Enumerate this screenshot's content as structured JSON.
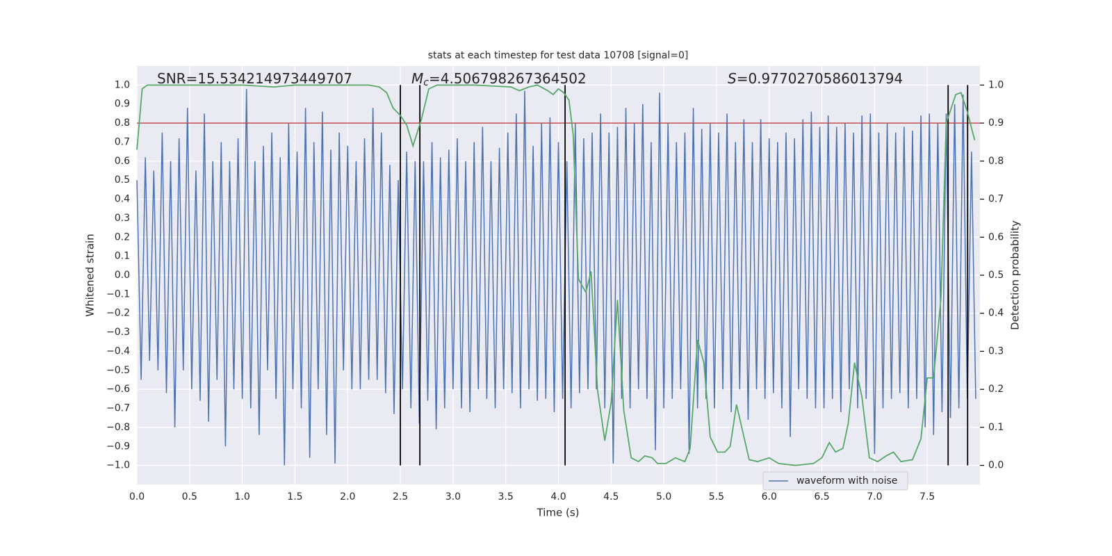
{
  "chart_data": {
    "type": "line",
    "title": "stats at each timestep for test data 10708 [signal=0]",
    "xlabel": "Time (s)",
    "ylabel": "Whitened strain",
    "y2label": "Detection probability",
    "xlim": [
      0,
      8
    ],
    "ylim": [
      -1.1,
      1.1
    ],
    "y2lim": [
      -0.05,
      1.05
    ],
    "grid": true,
    "background": "#eaeaf2",
    "legend": "lower right",
    "xticks": [
      {
        "value": 0,
        "label": "0.0"
      },
      0.5,
      {
        "value": 1,
        "label": "1.0"
      },
      1.5,
      {
        "value": 2,
        "label": "2.0"
      },
      2.5,
      {
        "value": 3,
        "label": "3.0"
      },
      3.5,
      {
        "value": 4,
        "label": "4.0"
      },
      4.5,
      {
        "value": 5,
        "label": "5.0"
      },
      5.5,
      {
        "value": 6,
        "label": "6.0"
      },
      6.5,
      {
        "value": 7,
        "label": "7.0"
      },
      7.5
    ],
    "yticks": [
      {
        "value": -1,
        "label": "−1.0"
      },
      {
        "value": -0.9,
        "label": "−0.9"
      },
      {
        "value": -0.8,
        "label": "−0.8"
      },
      {
        "value": -0.7,
        "label": "−0.7"
      },
      {
        "value": -0.6,
        "label": "−0.6"
      },
      {
        "value": -0.5,
        "label": "−0.5"
      },
      {
        "value": -0.4,
        "label": "−0.4"
      },
      {
        "value": -0.3,
        "label": "−0.3"
      },
      {
        "value": -0.2,
        "label": "−0.2"
      },
      {
        "value": -0.1,
        "label": "−0.1"
      },
      {
        "value": 0,
        "label": "0.0"
      },
      0.1,
      0.2,
      0.3,
      0.4,
      0.5,
      0.6,
      0.7,
      0.8,
      0.9,
      {
        "value": 1,
        "label": "1.0"
      }
    ],
    "y2ticks": [
      {
        "value": 0,
        "label": "0.0"
      },
      0.1,
      0.2,
      0.3,
      0.4,
      0.5,
      0.6,
      0.7,
      0.8,
      0.9,
      {
        "value": 1,
        "label": "1.0"
      }
    ],
    "series": [
      {
        "name": "waveform with noise",
        "color": "#4c72b0",
        "x": [
          0,
          0.04,
          0.08,
          0.12,
          0.16,
          0.2,
          0.24,
          0.28,
          0.32,
          0.36,
          0.4,
          0.44,
          0.48,
          0.52,
          0.56,
          0.6,
          0.64,
          0.68,
          0.72,
          0.76,
          0.8,
          0.84,
          0.88,
          0.92,
          0.96,
          1,
          1.04,
          1.08,
          1.12,
          1.16,
          1.2,
          1.24,
          1.28,
          1.32,
          1.36,
          1.4,
          1.44,
          1.48,
          1.52,
          1.56,
          1.6,
          1.64,
          1.68,
          1.72,
          1.76,
          1.8,
          1.84,
          1.88,
          1.92,
          1.96,
          2,
          2.04,
          2.08,
          2.12,
          2.16,
          2.2,
          2.24,
          2.28,
          2.32,
          2.36,
          2.4,
          2.44,
          2.48,
          2.52,
          2.56,
          2.6,
          2.64,
          2.68,
          2.72,
          2.76,
          2.8,
          2.84,
          2.88,
          2.92,
          2.96,
          3,
          3.04,
          3.08,
          3.12,
          3.16,
          3.2,
          3.24,
          3.28,
          3.32,
          3.36,
          3.4,
          3.44,
          3.48,
          3.52,
          3.56,
          3.6,
          3.64,
          3.68,
          3.72,
          3.76,
          3.8,
          3.84,
          3.88,
          3.92,
          3.96,
          4,
          4.04,
          4.08,
          4.12,
          4.16,
          4.2,
          4.24,
          4.28,
          4.32,
          4.36,
          4.4,
          4.44,
          4.48,
          4.52,
          4.56,
          4.6,
          4.64,
          4.68,
          4.72,
          4.76,
          4.8,
          4.84,
          4.88,
          4.92,
          4.96,
          5,
          5.04,
          5.08,
          5.12,
          5.16,
          5.2,
          5.24,
          5.28,
          5.32,
          5.36,
          5.4,
          5.44,
          5.48,
          5.52,
          5.56,
          5.6,
          5.64,
          5.68,
          5.72,
          5.76,
          5.8,
          5.84,
          5.88,
          5.92,
          5.96,
          6,
          6.04,
          6.08,
          6.12,
          6.16,
          6.2,
          6.24,
          6.28,
          6.32,
          6.36,
          6.4,
          6.44,
          6.48,
          6.52,
          6.56,
          6.6,
          6.64,
          6.68,
          6.72,
          6.76,
          6.8,
          6.84,
          6.88,
          6.92,
          6.96,
          7,
          7.04,
          7.08,
          7.12,
          7.16,
          7.2,
          7.24,
          7.28,
          7.32,
          7.36,
          7.4,
          7.44,
          7.48,
          7.52,
          7.56,
          7.6,
          7.64,
          7.68,
          7.72,
          7.76,
          7.8,
          7.84,
          7.88,
          7.92,
          7.96
        ],
        "values": [
          0.5,
          -0.55,
          0.62,
          -0.45,
          0.55,
          -0.5,
          0.75,
          -0.62,
          0.6,
          -0.8,
          0.72,
          -0.5,
          0.88,
          -0.6,
          0.55,
          -0.66,
          0.85,
          -0.77,
          0.6,
          -0.55,
          0.7,
          -0.9,
          0.6,
          -0.6,
          0.72,
          -0.65,
          0.98,
          -0.7,
          0.6,
          -0.84,
          0.68,
          -0.5,
          0.75,
          -0.65,
          0.62,
          -1.0,
          0.8,
          -0.6,
          0.65,
          -0.7,
          0.88,
          -0.96,
          0.7,
          -0.6,
          0.86,
          -0.84,
          0.66,
          -0.99,
          0.75,
          -0.5,
          0.68,
          -0.6,
          0.6,
          -0.6,
          0.72,
          -0.55,
          0.88,
          -0.55,
          0.75,
          -0.62,
          0.58,
          -0.73,
          0.5,
          -0.6,
          0.65,
          -0.7,
          0.6,
          -0.78,
          0.6,
          -0.66,
          0.7,
          -0.81,
          0.62,
          -0.7,
          0.66,
          -0.6,
          0.72,
          -0.7,
          0.6,
          -0.72,
          0.7,
          -0.6,
          0.78,
          -0.65,
          0.6,
          -0.7,
          0.67,
          -0.6,
          0.75,
          -0.62,
          0.85,
          -0.7,
          0.97,
          -0.6,
          0.68,
          -0.66,
          0.8,
          -0.65,
          0.83,
          -0.72,
          0.7,
          -0.65,
          0.6,
          -0.7,
          0.8,
          -0.62,
          0.72,
          -0.6,
          0.75,
          -0.6,
          0.85,
          -0.7,
          0.75,
          -0.99,
          0.78,
          -0.65,
          0.88,
          -0.7,
          0.8,
          -0.6,
          0.9,
          -0.65,
          0.7,
          -0.92,
          0.96,
          -0.7,
          0.8,
          -0.65,
          0.7,
          -0.6,
          0.75,
          -0.94,
          0.88,
          -0.7,
          0.77,
          -0.65,
          0.8,
          -0.7,
          0.75,
          -0.6,
          0.85,
          -0.72,
          0.7,
          -0.6,
          0.82,
          -0.76,
          0.7,
          -0.6,
          0.82,
          -0.65,
          0.72,
          -0.62,
          0.7,
          -0.7,
          0.75,
          -0.85,
          0.72,
          -0.6,
          0.82,
          -0.65,
          0.86,
          -0.7,
          0.78,
          -0.7,
          0.84,
          -0.65,
          0.78,
          -0.72,
          0.8,
          -0.6,
          0.75,
          -0.7,
          0.84,
          -0.65,
          0.85,
          -0.94,
          0.75,
          -0.7,
          0.8,
          -0.65,
          0.75,
          -0.62,
          0.78,
          -0.7,
          0.76,
          -0.65,
          0.84,
          -0.8,
          0.85,
          -0.84,
          0.8,
          -0.72,
          0.85,
          -0.75,
          0.9,
          -0.7,
          0.95,
          -0.65,
          0.65,
          -0.65
        ]
      }
    ],
    "probability": {
      "axis": "y2",
      "color": "#55a868",
      "x": [
        0,
        0.05,
        0.1,
        0.5,
        1.0,
        1.3,
        1.5,
        2.0,
        2.2,
        2.3,
        2.37,
        2.43,
        2.5,
        2.56,
        2.62,
        2.7,
        2.77,
        2.85,
        3.2,
        3.55,
        3.63,
        3.72,
        3.8,
        3.9,
        3.95,
        4.0,
        4.05,
        4.1,
        4.14,
        4.19,
        4.26,
        4.31,
        4.37,
        4.44,
        4.5,
        4.56,
        4.62,
        4.69,
        4.76,
        4.82,
        4.89,
        4.94,
        5.02,
        5.11,
        5.2,
        5.25,
        5.32,
        5.38,
        5.44,
        5.51,
        5.58,
        5.63,
        5.69,
        5.81,
        5.89,
        6.0,
        6.09,
        6.25,
        6.42,
        6.5,
        6.57,
        6.63,
        6.7,
        6.75,
        6.81,
        6.88,
        6.95,
        7.03,
        7.11,
        7.18,
        7.25,
        7.36,
        7.44,
        7.5,
        7.56,
        7.63,
        7.68,
        7.77,
        7.82,
        7.88,
        7.95
      ],
      "values": [
        0.83,
        0.99,
        1.0,
        1.0,
        1.0,
        0.995,
        1.0,
        1.0,
        1.0,
        0.995,
        0.98,
        0.94,
        0.92,
        0.895,
        0.84,
        0.91,
        0.99,
        1.0,
        1.0,
        0.995,
        0.985,
        0.995,
        1.0,
        0.985,
        0.975,
        0.99,
        0.98,
        0.96,
        0.87,
        0.49,
        0.455,
        0.51,
        0.2,
        0.065,
        0.165,
        0.435,
        0.145,
        0.02,
        0.01,
        0.025,
        0.02,
        0.005,
        0.005,
        0.02,
        0.01,
        0.045,
        0.33,
        0.27,
        0.075,
        0.035,
        0.035,
        0.05,
        0.16,
        0.015,
        0.01,
        0.02,
        0.005,
        0.0,
        0.005,
        0.02,
        0.06,
        0.035,
        0.045,
        0.11,
        0.27,
        0.18,
        0.02,
        0.01,
        0.025,
        0.035,
        0.01,
        0.015,
        0.07,
        0.23,
        0.23,
        0.44,
        0.9,
        0.975,
        0.98,
        0.93,
        0.855
      ]
    },
    "hline": {
      "y": 0.8,
      "color": "#c44e52"
    },
    "vlines": {
      "x": [
        2.5,
        2.685,
        4.063,
        7.698,
        7.883
      ],
      "ymin": -1,
      "ymax": 1,
      "color": "#000000"
    },
    "annotations": [
      {
        "text": "SNR=15.534214973449707"
      },
      {
        "symbol": "M",
        "sub": "c",
        "text": "=4.506798267364502"
      },
      {
        "symbol": "S",
        "text": "=0.9770270586013794"
      }
    ]
  }
}
